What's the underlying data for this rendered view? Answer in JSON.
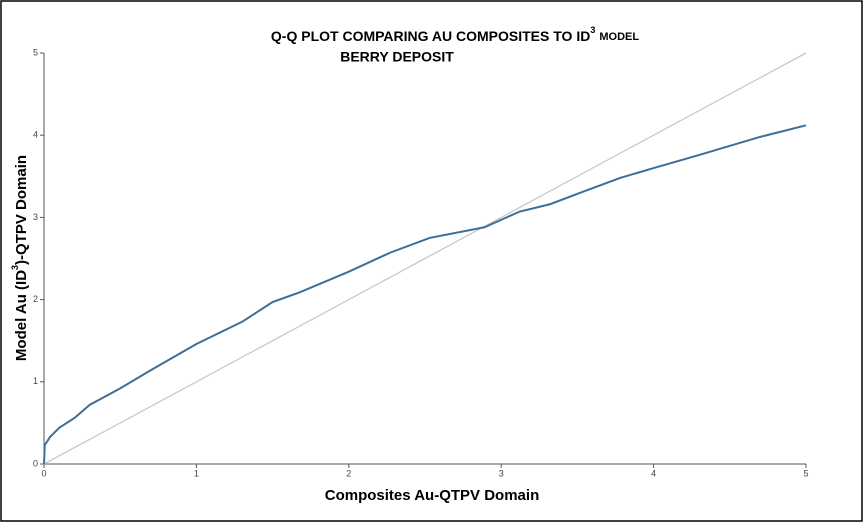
{
  "chart_data": {
    "type": "line",
    "title": [
      "Q-Q PLOT COMPARING AU COMPOSITES TO ID",
      "3",
      "MODEL"
    ],
    "subtitle": "BERRY DEPOSIT",
    "x_label": "Composites Au-QTPV Domain",
    "y_label": [
      "Model Au (ID",
      "3",
      ")-QTPV Domain"
    ],
    "x": [
      0,
      0.005,
      0.04,
      0.1,
      0.2,
      0.3,
      0.5,
      0.7,
      1,
      1.3,
      1.5,
      1.68,
      2,
      2.27,
      2.53,
      2.89,
      3.12,
      3.32,
      3.52,
      3.78,
      4,
      4.3,
      4.7,
      5
    ],
    "values": [
      0,
      0.23,
      0.33,
      0.44,
      0.56,
      0.72,
      0.92,
      1.14,
      1.46,
      1.73,
      1.97,
      2.09,
      2.34,
      2.57,
      2.75,
      2.88,
      3.07,
      3.16,
      3.3,
      3.48,
      3.6,
      3.76,
      3.98,
      4.12
    ],
    "color": "#3e6e97",
    "reference": {
      "x": [
        0,
        5
      ],
      "values": [
        0,
        5
      ],
      "color": "#c8c8c8"
    },
    "xlim": [
      0,
      5
    ],
    "ylim": [
      0,
      5
    ],
    "xticks": [
      0,
      1,
      2,
      3,
      4,
      5
    ],
    "yticks": [
      0,
      1,
      2,
      3,
      4,
      5
    ]
  }
}
